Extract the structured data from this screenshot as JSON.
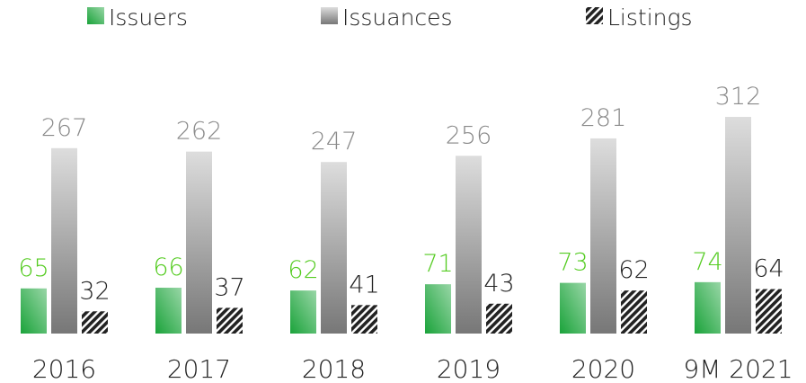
{
  "chart_data": {
    "type": "bar",
    "categories": [
      "2016",
      "2017",
      "2018",
      "2019",
      "2020",
      "9M 2021"
    ],
    "series": [
      {
        "name": "Issuers",
        "color": "#1aa33a",
        "values": [
          65,
          66,
          62,
          71,
          73,
          74
        ]
      },
      {
        "name": "Issuances",
        "color": "#777777",
        "values": [
          267,
          262,
          247,
          256,
          281,
          312
        ]
      },
      {
        "name": "Listings",
        "color": "#222222",
        "values": [
          32,
          37,
          41,
          43,
          62,
          64
        ]
      }
    ]
  }
}
